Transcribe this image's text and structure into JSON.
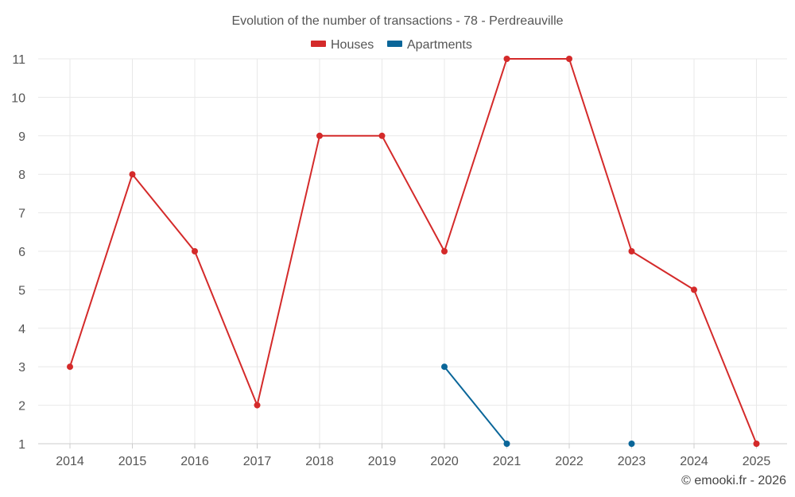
{
  "chart_data": {
    "type": "line",
    "title": "Evolution of the number of transactions - 78 - Perdreauville",
    "categories": [
      "2014",
      "2015",
      "2016",
      "2017",
      "2018",
      "2019",
      "2020",
      "2021",
      "2022",
      "2023",
      "2024",
      "2025"
    ],
    "ylim": [
      1,
      11
    ],
    "yticks": [
      1,
      2,
      3,
      4,
      5,
      6,
      7,
      8,
      9,
      10,
      11
    ],
    "grid": true,
    "legend_position": "top-center",
    "series": [
      {
        "name": "Houses",
        "color": "#d42a2a",
        "values": [
          3,
          8,
          6,
          2,
          9,
          9,
          6,
          11,
          11,
          6,
          5,
          1
        ]
      },
      {
        "name": "Apartments",
        "color": "#0a6699",
        "values": [
          null,
          null,
          null,
          null,
          null,
          null,
          3,
          1,
          null,
          1,
          null,
          null
        ]
      }
    ],
    "credit": "© emooki.fr - 2026"
  }
}
